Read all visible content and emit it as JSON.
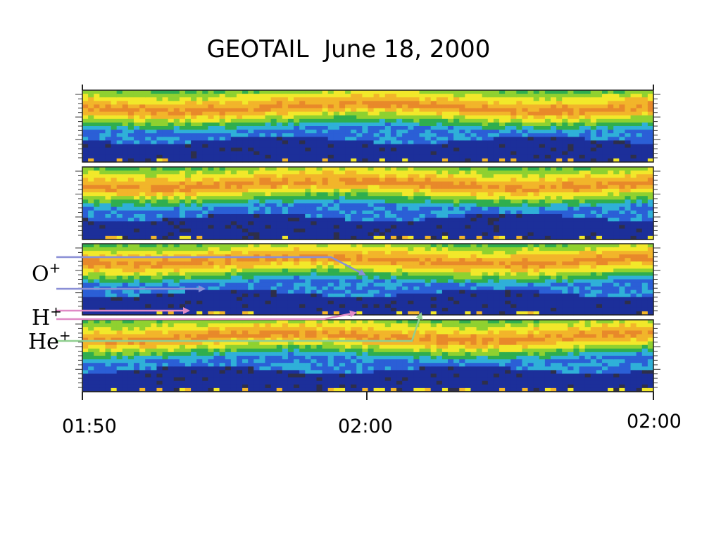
{
  "title": "GEOTAIL  June 18, 2000",
  "chart_data": {
    "type": "heatmap",
    "title": "GEOTAIL  June 18, 2000",
    "panel_count": 4,
    "x_tick_labels": [
      "01:50",
      "02:00",
      "02:00"
    ],
    "colormap": [
      "#2e2f4a",
      "#1c2f9a",
      "#2b5fd6",
      "#2fb0d8",
      "#2fae4e",
      "#8fd130",
      "#f2e82a",
      "#f2b52a",
      "#e8892a"
    ],
    "annotations": [
      {
        "label": "O",
        "sup": "+",
        "color": "#8a8fd6"
      },
      {
        "label": "H",
        "sup": "+",
        "color": "#e08ac6"
      },
      {
        "label": "He",
        "sup": "+",
        "color": "#8fcf8f"
      }
    ]
  }
}
